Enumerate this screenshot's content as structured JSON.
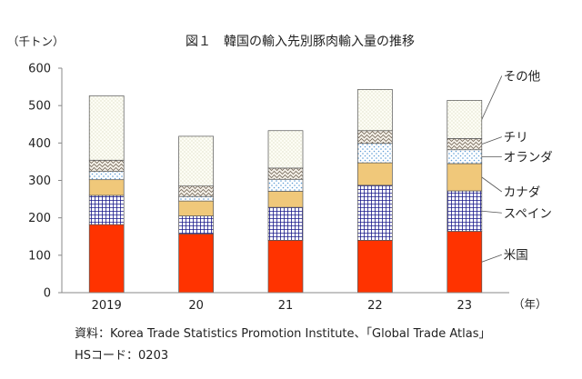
{
  "chart_data": {
    "type": "bar",
    "stacked": true,
    "title": "図１　韓国の輸入先別豚肉輸入量の推移",
    "ylabel": "（千トン）",
    "xlabel": "（年）",
    "ylim": [
      0,
      600
    ],
    "yticks": [
      0,
      100,
      200,
      300,
      400,
      500,
      600
    ],
    "categories": [
      "2019",
      "20",
      "21",
      "22",
      "23"
    ],
    "grid": false,
    "legend": "direct labels on the right",
    "series": [
      {
        "name": "米国",
        "color": "#ff3300",
        "pattern": "solid",
        "values": [
          182,
          157,
          140,
          140,
          164
        ]
      },
      {
        "name": "スペイン",
        "color": "#1a1a8c",
        "pattern": "grid",
        "values": [
          78,
          48,
          88,
          147,
          108
        ]
      },
      {
        "name": "カナダ",
        "color": "#f0c87a",
        "pattern": "solid",
        "values": [
          42,
          40,
          43,
          60,
          73
        ]
      },
      {
        "name": "オランダ",
        "color": "#5b9bd5",
        "pattern": "dots",
        "values": [
          22,
          12,
          32,
          52,
          37
        ]
      },
      {
        "name": "チリ",
        "color": "#8c7b6b",
        "pattern": "wave",
        "values": [
          30,
          28,
          30,
          34,
          30
        ]
      },
      {
        "name": "その他",
        "color": "#b5b58a",
        "pattern": "fine-dots",
        "values": [
          172,
          133,
          100,
          110,
          102
        ]
      }
    ]
  },
  "notes": {
    "source": "資料：Korea Trade Statistics Promotion Institute、「Global Trade Atlas」",
    "hs_code": "HSコード：0203"
  }
}
